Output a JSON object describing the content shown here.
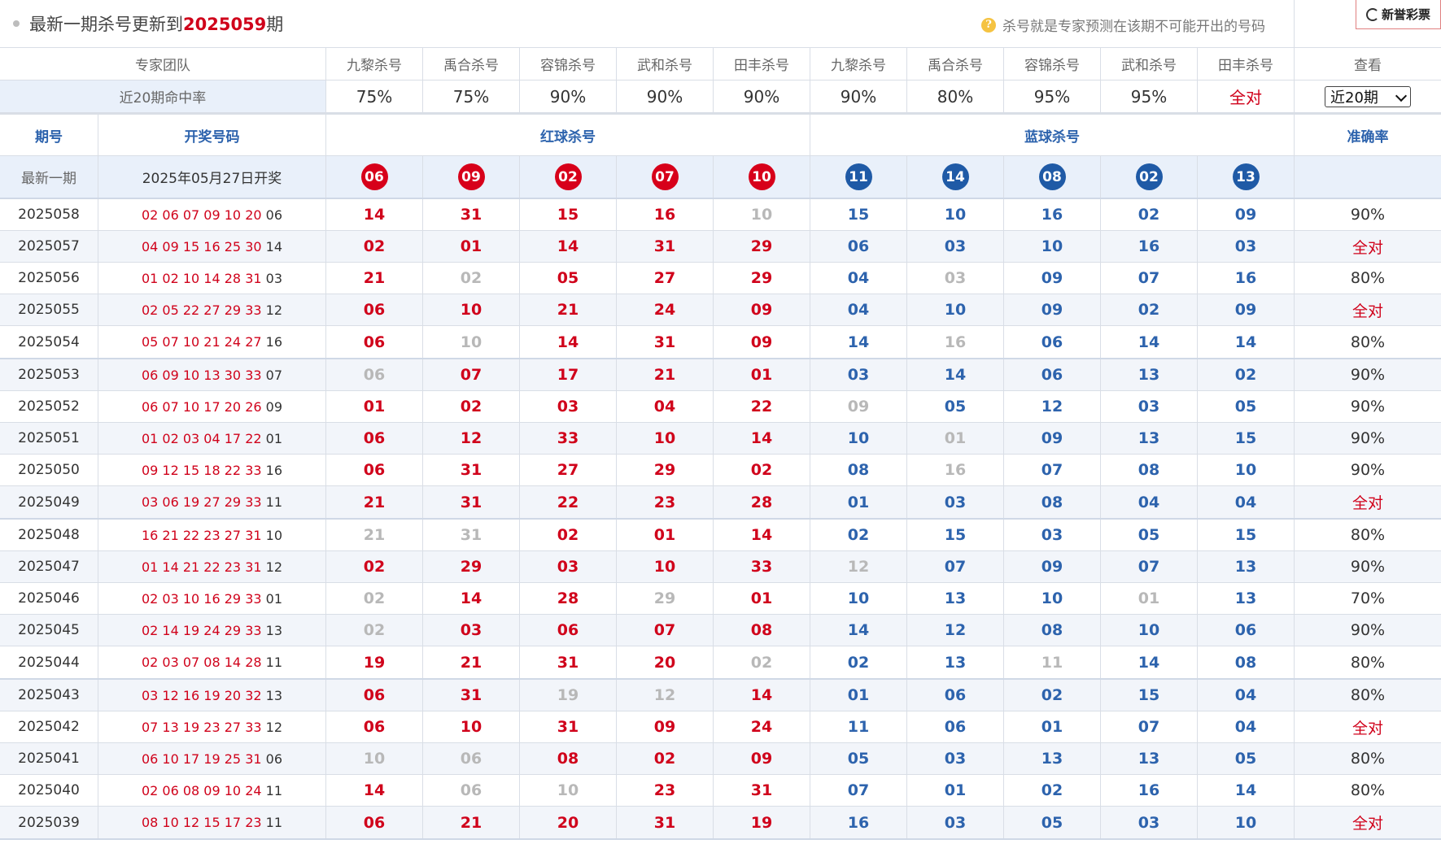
{
  "top": {
    "title_prefix": "最新一期杀号更新到",
    "title_issue": "2025059",
    "title_suffix": "期",
    "hint": "杀号就是专家预测在该期不可能开出的号码",
    "logo": "新誉彩票"
  },
  "experts_row": {
    "team_label": "专家团队",
    "experts": [
      "九黎杀号",
      "禹合杀号",
      "容锦杀号",
      "武和杀号",
      "田丰杀号",
      "九黎杀号",
      "禹合杀号",
      "容锦杀号",
      "武和杀号",
      "田丰杀号"
    ],
    "view_label": "查看"
  },
  "rate_row": {
    "label": "近20期命中率",
    "rates": [
      "75%",
      "75%",
      "90%",
      "90%",
      "90%",
      "90%",
      "80%",
      "95%",
      "95%",
      "全对"
    ],
    "select_value": "近20期"
  },
  "header_row": {
    "period": "期号",
    "draw": "开奖号码",
    "red": "红球杀号",
    "blue": "蓝球杀号",
    "accuracy": "准确率"
  },
  "latest": {
    "label": "最新一期",
    "date": "2025年05月27日开奖",
    "red_balls": [
      "06",
      "09",
      "02",
      "07",
      "10"
    ],
    "blue_balls": [
      "11",
      "14",
      "08",
      "02",
      "13"
    ]
  },
  "colors": {
    "red": "#d0021b",
    "blue": "#2d63ad",
    "miss_gray": "#b8b8b8",
    "band": "#e9f0fa",
    "stripe": "#f2f5fa"
  },
  "rows": [
    {
      "p": "2025058",
      "d": "02 06 07 09 10 20",
      "b": "06",
      "k": [
        "14",
        "31",
        "15",
        "16",
        "10",
        "15",
        "10",
        "16",
        "02",
        "09"
      ],
      "g": [
        4
      ],
      "a": "90%"
    },
    {
      "p": "2025057",
      "d": "04 09 15 16 25 30",
      "b": "14",
      "k": [
        "02",
        "01",
        "14",
        "31",
        "29",
        "06",
        "03",
        "10",
        "16",
        "03"
      ],
      "g": [],
      "a": "全对"
    },
    {
      "p": "2025056",
      "d": "01 02 10 14 28 31",
      "b": "03",
      "k": [
        "21",
        "02",
        "05",
        "27",
        "29",
        "04",
        "03",
        "09",
        "07",
        "16"
      ],
      "g": [
        1,
        6
      ],
      "a": "80%"
    },
    {
      "p": "2025055",
      "d": "02 05 22 27 29 33",
      "b": "12",
      "k": [
        "06",
        "10",
        "21",
        "24",
        "09",
        "04",
        "10",
        "09",
        "02",
        "09"
      ],
      "g": [],
      "a": "全对"
    },
    {
      "p": "2025054",
      "d": "05 07 10 21 24 27",
      "b": "16",
      "k": [
        "06",
        "10",
        "14",
        "31",
        "09",
        "14",
        "16",
        "06",
        "14",
        "14"
      ],
      "g": [
        1,
        6
      ],
      "a": "80%"
    },
    {
      "p": "2025053",
      "d": "06 09 10 13 30 33",
      "b": "07",
      "k": [
        "06",
        "07",
        "17",
        "21",
        "01",
        "03",
        "14",
        "06",
        "13",
        "02"
      ],
      "g": [
        0
      ],
      "a": "90%"
    },
    {
      "p": "2025052",
      "d": "06 07 10 17 20 26",
      "b": "09",
      "k": [
        "01",
        "02",
        "03",
        "04",
        "22",
        "09",
        "05",
        "12",
        "03",
        "05"
      ],
      "g": [
        5
      ],
      "a": "90%"
    },
    {
      "p": "2025051",
      "d": "01 02 03 04 17 22",
      "b": "01",
      "k": [
        "06",
        "12",
        "33",
        "10",
        "14",
        "10",
        "01",
        "09",
        "13",
        "15"
      ],
      "g": [
        6
      ],
      "a": "90%"
    },
    {
      "p": "2025050",
      "d": "09 12 15 18 22 33",
      "b": "16",
      "k": [
        "06",
        "31",
        "27",
        "29",
        "02",
        "08",
        "16",
        "07",
        "08",
        "10"
      ],
      "g": [
        6
      ],
      "a": "90%"
    },
    {
      "p": "2025049",
      "d": "03 06 19 27 29 33",
      "b": "11",
      "k": [
        "21",
        "31",
        "22",
        "23",
        "28",
        "01",
        "03",
        "08",
        "04",
        "04"
      ],
      "g": [],
      "a": "全对"
    },
    {
      "p": "2025048",
      "d": "16 21 22 23 27 31",
      "b": "10",
      "k": [
        "21",
        "31",
        "02",
        "01",
        "14",
        "02",
        "15",
        "03",
        "05",
        "15"
      ],
      "g": [
        0,
        1
      ],
      "a": "80%"
    },
    {
      "p": "2025047",
      "d": "01 14 21 22 23 31",
      "b": "12",
      "k": [
        "02",
        "29",
        "03",
        "10",
        "33",
        "12",
        "07",
        "09",
        "07",
        "13"
      ],
      "g": [
        5
      ],
      "a": "90%"
    },
    {
      "p": "2025046",
      "d": "02 03 10 16 29 33",
      "b": "01",
      "k": [
        "02",
        "14",
        "28",
        "29",
        "01",
        "10",
        "13",
        "10",
        "01",
        "13"
      ],
      "g": [
        0,
        3,
        8
      ],
      "a": "70%"
    },
    {
      "p": "2025045",
      "d": "02 14 19 24 29 33",
      "b": "13",
      "k": [
        "02",
        "03",
        "06",
        "07",
        "08",
        "14",
        "12",
        "08",
        "10",
        "06"
      ],
      "g": [
        0
      ],
      "a": "90%"
    },
    {
      "p": "2025044",
      "d": "02 03 07 08 14 28",
      "b": "11",
      "k": [
        "19",
        "21",
        "31",
        "20",
        "02",
        "02",
        "13",
        "11",
        "14",
        "08"
      ],
      "g": [
        4,
        7
      ],
      "a": "80%"
    },
    {
      "p": "2025043",
      "d": "03 12 16 19 20 32",
      "b": "13",
      "k": [
        "06",
        "31",
        "19",
        "12",
        "14",
        "01",
        "06",
        "02",
        "15",
        "04"
      ],
      "g": [
        2,
        3
      ],
      "a": "80%"
    },
    {
      "p": "2025042",
      "d": "07 13 19 23 27 33",
      "b": "12",
      "k": [
        "06",
        "10",
        "31",
        "09",
        "24",
        "11",
        "06",
        "01",
        "07",
        "04"
      ],
      "g": [],
      "a": "全对"
    },
    {
      "p": "2025041",
      "d": "06 10 17 19 25 31",
      "b": "06",
      "k": [
        "10",
        "06",
        "08",
        "02",
        "09",
        "05",
        "03",
        "13",
        "13",
        "05"
      ],
      "g": [
        0,
        1
      ],
      "a": "80%"
    },
    {
      "p": "2025040",
      "d": "02 06 08 09 10 24",
      "b": "11",
      "k": [
        "14",
        "06",
        "10",
        "23",
        "31",
        "07",
        "01",
        "02",
        "16",
        "14"
      ],
      "g": [
        1,
        2
      ],
      "a": "80%"
    },
    {
      "p": "2025039",
      "d": "08 10 12 15 17 23",
      "b": "11",
      "k": [
        "06",
        "21",
        "20",
        "31",
        "19",
        "16",
        "03",
        "05",
        "03",
        "10"
      ],
      "g": [],
      "a": "全对"
    }
  ]
}
